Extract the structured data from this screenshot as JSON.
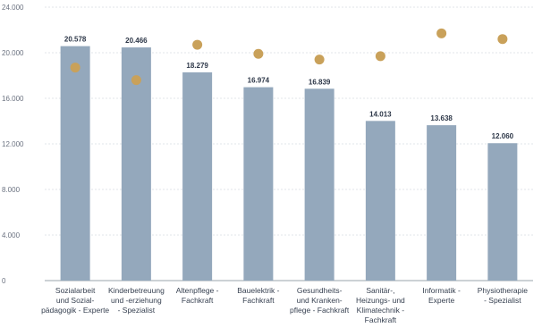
{
  "colors": {
    "bar": "#94a8bc",
    "dot": "#c9a15a",
    "grid": "#e2e6ea",
    "axis": "#9aa3ab"
  },
  "chart_data": {
    "type": "bar",
    "title": "",
    "xlabel": "",
    "ylabel": "",
    "ylim": [
      0,
      24000
    ],
    "yticks": [
      "0",
      "4.000",
      "8.000",
      "12.000",
      "16.000",
      "20.000",
      "24.000"
    ],
    "grid": true,
    "categories": [
      [
        "Sozialarbeit",
        "und Sozial-",
        "pädagogik - Experte"
      ],
      [
        "Kinderbetreuung",
        "und -erziehung",
        "- Spezialist"
      ],
      [
        "Altenpflege -",
        "Fachkraft"
      ],
      [
        "Bauelektrik -",
        "Fachkraft"
      ],
      [
        "Gesundheits-",
        "und Kranken-",
        "pflege - Fachkraft"
      ],
      [
        "Sanitär-,",
        "Heizungs- und",
        "Klimatechnik -",
        "Fachkraft"
      ],
      [
        "Informatik -",
        "Experte"
      ],
      [
        "Physiotherapie",
        "- Spezialist"
      ]
    ],
    "series": [
      {
        "type": "bar",
        "values": [
          20578,
          20466,
          18279,
          16974,
          16839,
          14013,
          13638,
          12060
        ],
        "labels": [
          "20.578",
          "20.466",
          "18.279",
          "16.974",
          "16.839",
          "14.013",
          "13.638",
          "12.060"
        ]
      },
      {
        "type": "scatter",
        "values": [
          18700,
          17600,
          20700,
          19900,
          19400,
          19700,
          21700,
          21200
        ]
      }
    ]
  }
}
